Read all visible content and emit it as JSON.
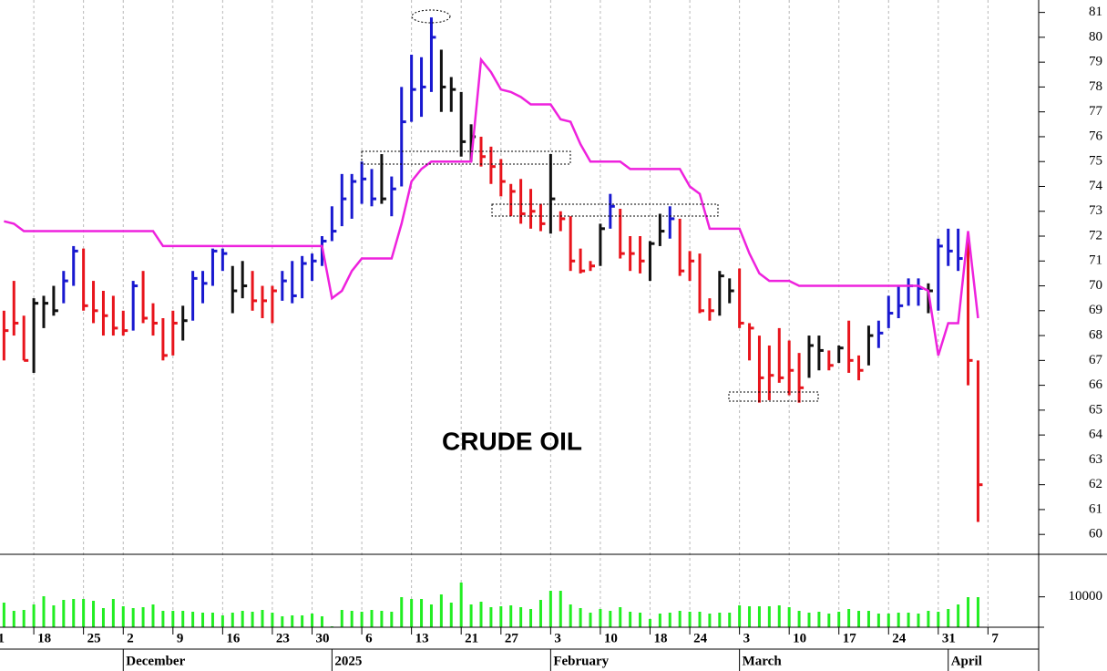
{
  "chart_data": [
    {
      "type": "ohlc",
      "annotation": "CRUDE OIL",
      "high": [
        69,
        70.2,
        68.8,
        69.5,
        69.6,
        70,
        70.6,
        71.6,
        71.5,
        70.2,
        69.8,
        69.6,
        69,
        70.2,
        70.6,
        69.3,
        68.7,
        69,
        69.2,
        70.6,
        70.6,
        71.5,
        71.5,
        70.8,
        71,
        70.6,
        70,
        70,
        70.6,
        71,
        71.2,
        71.3,
        72,
        73.2,
        74.5,
        74.5,
        75,
        74.7,
        75.3,
        74.4,
        78,
        79.3,
        79.2,
        80.8,
        79.5,
        78.4,
        77.8,
        76.5,
        76,
        75.6,
        75.1,
        74.1,
        74.3,
        73.9,
        73.3,
        75.3,
        73,
        72.8,
        71.5,
        71,
        72.5,
        73.7,
        73.1,
        72,
        72,
        71.8,
        72.9,
        73.2,
        72.7,
        71.4,
        71.3,
        69.5,
        70.6,
        70.3,
        70.7,
        68.5,
        68,
        67.6,
        68.3,
        67.8,
        67.3,
        68,
        68,
        67.4,
        67.6,
        68.6,
        67.2,
        68.4,
        68.6,
        69.6,
        70,
        70.3,
        70.3,
        70.1,
        71.9,
        72.3,
        72.3,
        71.9,
        67
      ],
      "low": [
        67,
        68,
        67,
        66.5,
        68.3,
        68.8,
        69.3,
        70,
        69,
        68.5,
        68,
        68,
        68,
        68.2,
        68.5,
        68,
        67,
        67.2,
        67.8,
        68.6,
        69.3,
        70,
        70.6,
        68.9,
        69.5,
        69,
        68.7,
        68.5,
        69.4,
        69.3,
        69.5,
        70.2,
        70.8,
        71.8,
        72.4,
        72.7,
        73.3,
        73.2,
        73.3,
        72.8,
        74,
        76.6,
        76.8,
        77.8,
        77,
        77,
        75.2,
        75,
        74.8,
        74.1,
        73.6,
        72.8,
        72.5,
        72.3,
        72.2,
        72.1,
        72.2,
        70.6,
        70.5,
        70.6,
        70.8,
        72.3,
        71.1,
        70.6,
        70.5,
        70.2,
        71.6,
        71.9,
        70.4,
        70.2,
        68.9,
        68.6,
        68.8,
        69.3,
        68.3,
        67,
        65.3,
        65.4,
        66.1,
        65.6,
        65.3,
        66.3,
        66.6,
        66.6,
        66.9,
        66.5,
        66.2,
        66.8,
        67.5,
        68.3,
        68.7,
        69.2,
        69.2,
        68.9,
        69,
        70.8,
        70.6,
        66,
        60.5
      ],
      "close": [
        68.2,
        68.5,
        67,
        69.3,
        69.3,
        69,
        70.2,
        71.4,
        69.2,
        69,
        68.8,
        68.3,
        68.2,
        70,
        68.7,
        68.5,
        67.2,
        68.5,
        68.6,
        70.3,
        70.1,
        71.4,
        71.3,
        69.8,
        70,
        69.4,
        69.4,
        69.8,
        70.2,
        69.6,
        70.9,
        71,
        71.8,
        72.2,
        73.5,
        74.2,
        74.3,
        73.5,
        73.5,
        73.9,
        76.6,
        77.9,
        78,
        80,
        78,
        77.9,
        75.8,
        76,
        75.2,
        74.8,
        74.2,
        73.8,
        72.9,
        73,
        72.5,
        73.5,
        72.7,
        71,
        70.6,
        70.8,
        72.3,
        73.2,
        71.3,
        71.3,
        71,
        71.7,
        72.2,
        72.7,
        70.6,
        71,
        69,
        69,
        70.4,
        69.8,
        68.5,
        68.3,
        66.3,
        66.4,
        66.3,
        66.6,
        65.9,
        67.6,
        67.4,
        66.8,
        67.5,
        67,
        66.6,
        68,
        68.1,
        68.9,
        69.2,
        70,
        69.9,
        69.8,
        71.6,
        71.4,
        71.1,
        67,
        62
      ],
      "bar_colors": [
        "#e8141c",
        "#e8141c",
        "#e8141c",
        "#111111",
        "#111111",
        "#111111",
        "#1818d0",
        "#1818d0",
        "#e8141c",
        "#e8141c",
        "#e8141c",
        "#e8141c",
        "#e8141c",
        "#1818d0",
        "#e8141c",
        "#e8141c",
        "#e8141c",
        "#e8141c",
        "#111111",
        "#1818d0",
        "#1818d0",
        "#1818d0",
        "#1818d0",
        "#111111",
        "#111111",
        "#e8141c",
        "#e8141c",
        "#e8141c",
        "#1818d0",
        "#1818d0",
        "#1818d0",
        "#1818d0",
        "#1818d0",
        "#1818d0",
        "#1818d0",
        "#1818d0",
        "#1818d0",
        "#1818d0",
        "#111111",
        "#1818d0",
        "#1818d0",
        "#1818d0",
        "#1818d0",
        "#1818d0",
        "#111111",
        "#111111",
        "#111111",
        "#111111",
        "#e8141c",
        "#e8141c",
        "#e8141c",
        "#e8141c",
        "#e8141c",
        "#e8141c",
        "#e8141c",
        "#111111",
        "#e8141c",
        "#e8141c",
        "#e8141c",
        "#e8141c",
        "#111111",
        "#1818d0",
        "#e8141c",
        "#e8141c",
        "#e8141c",
        "#111111",
        "#111111",
        "#1818d0",
        "#e8141c",
        "#e8141c",
        "#e8141c",
        "#e8141c",
        "#111111",
        "#111111",
        "#e8141c",
        "#e8141c",
        "#e8141c",
        "#e8141c",
        "#e8141c",
        "#e8141c",
        "#e8141c",
        "#111111",
        "#111111",
        "#e8141c",
        "#111111",
        "#e8141c",
        "#e8141c",
        "#111111",
        "#1818d0",
        "#1818d0",
        "#1818d0",
        "#1818d0",
        "#1818d0",
        "#111111",
        "#1818d0",
        "#1818d0",
        "#1818d0",
        "#e8141c",
        "#e8141c"
      ],
      "overlay": {
        "color": "#ee22dd",
        "values": [
          72.6,
          72.5,
          72.2,
          72.2,
          72.2,
          72.2,
          72.2,
          72.2,
          72.2,
          72.2,
          72.2,
          72.2,
          72.2,
          72.2,
          72.2,
          72.2,
          71.6,
          71.6,
          71.6,
          71.6,
          71.6,
          71.6,
          71.6,
          71.6,
          71.6,
          71.6,
          71.6,
          71.6,
          71.6,
          71.6,
          71.6,
          71.6,
          71.6,
          69.5,
          69.8,
          70.6,
          71.1,
          71.1,
          71.1,
          71.1,
          72.5,
          74.2,
          74.7,
          75,
          75,
          75,
          75,
          75,
          79.1,
          78.6,
          77.9,
          77.8,
          77.6,
          77.3,
          77.3,
          77.3,
          76.7,
          76.6,
          75.7,
          75,
          75,
          75,
          75,
          74.7,
          74.7,
          74.7,
          74.7,
          74.7,
          74.7,
          74,
          73.7,
          72.3,
          72.3,
          72.3,
          72.3,
          71.3,
          70.5,
          70.2,
          70.2,
          70.2,
          70,
          70,
          70,
          70,
          70,
          70,
          70,
          70,
          70,
          70,
          70,
          70,
          70,
          69.8,
          67.2,
          68.5,
          68.5,
          72.2,
          68.7
        ]
      },
      "xlim": [
        -0.4,
        104.1
      ],
      "ylim": [
        59.2,
        81.5
      ],
      "yticks": [
        60,
        61,
        62,
        63,
        64,
        65,
        66,
        67,
        68,
        69,
        70,
        71,
        72,
        73,
        74,
        75,
        76,
        77,
        78,
        79,
        80,
        81
      ],
      "xticks": [
        {
          "value": -1,
          "label": "1"
        },
        {
          "value": 3,
          "label": "18"
        },
        {
          "value": 8,
          "label": "25"
        },
        {
          "value": 12,
          "label": "2"
        },
        {
          "value": 17,
          "label": "9"
        },
        {
          "value": 22,
          "label": "16"
        },
        {
          "value": 27,
          "label": "23"
        },
        {
          "value": 31,
          "label": "30"
        },
        {
          "value": 36,
          "label": "6"
        },
        {
          "value": 41,
          "label": "13"
        },
        {
          "value": 46,
          "label": "21"
        },
        {
          "value": 50,
          "label": "27"
        },
        {
          "value": 55,
          "label": "3"
        },
        {
          "value": 60,
          "label": "10"
        },
        {
          "value": 65,
          "label": "18"
        },
        {
          "value": 69,
          "label": "24"
        },
        {
          "value": 74,
          "label": "3"
        },
        {
          "value": 79,
          "label": "10"
        },
        {
          "value": 84,
          "label": "17"
        },
        {
          "value": 89,
          "label": "24"
        },
        {
          "value": 94,
          "label": "31"
        },
        {
          "value": 99,
          "label": "7"
        }
      ],
      "month_ticks": [
        {
          "value": 12,
          "label": "December"
        },
        {
          "value": 33,
          "label": "2025"
        },
        {
          "value": 55,
          "label": "February"
        },
        {
          "value": 74,
          "label": "March"
        },
        {
          "value": 95,
          "label": "April"
        }
      ],
      "grid": true
    },
    {
      "type": "bar",
      "color": "#22ee22",
      "values": [
        8100,
        5400,
        5700,
        7500,
        10200,
        7200,
        9000,
        9300,
        9300,
        8700,
        6300,
        9300,
        6900,
        6300,
        6600,
        7500,
        5400,
        5400,
        5400,
        5100,
        4800,
        4800,
        3900,
        4800,
        5400,
        5100,
        5700,
        4800,
        3600,
        3900,
        3900,
        4500,
        3600,
        300,
        5700,
        5400,
        5100,
        5700,
        5400,
        5100,
        9900,
        9300,
        9300,
        7500,
        10800,
        8100,
        14700,
        7500,
        8400,
        6600,
        6900,
        7200,
        6600,
        6000,
        9000,
        12000,
        12000,
        7500,
        6300,
        4800,
        6000,
        5400,
        6600,
        5100,
        4800,
        2700,
        4500,
        4800,
        5400,
        5100,
        5100,
        4500,
        4800,
        4800,
        7200,
        6900,
        6900,
        6900,
        7200,
        6600,
        5400,
        4800,
        5100,
        4500,
        5100,
        6000,
        5400,
        5400,
        4500,
        4500,
        4800,
        4800,
        4500,
        5400,
        5100,
        6000,
        7500,
        9900,
        9900
      ],
      "ylim": [
        0,
        23400
      ],
      "yticks": [
        10000
      ]
    }
  ]
}
